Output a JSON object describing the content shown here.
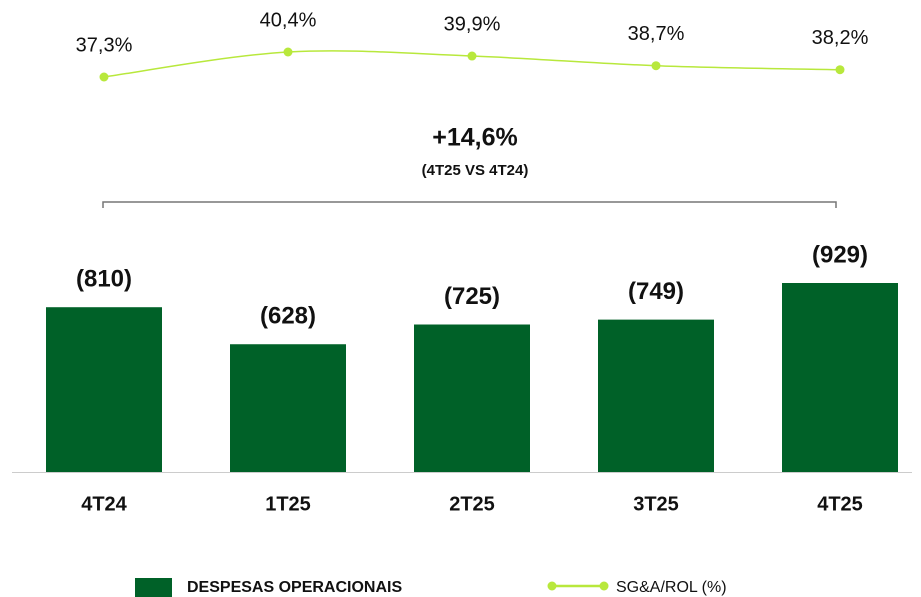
{
  "chart_data": {
    "type": "bar",
    "categories": [
      "4T24",
      "1T25",
      "2T25",
      "3T25",
      "4T25"
    ],
    "series": [
      {
        "name": "DESPESAS OPERACIONAIS",
        "color": "#006128",
        "values": [
          810,
          628,
          725,
          749,
          929
        ],
        "value_labels": [
          "(810)",
          "(628)",
          "(725)",
          "(749)",
          "(929)"
        ]
      },
      {
        "name": "SG&A/ROL (%)",
        "type": "line",
        "color": "#b8e83c",
        "values": [
          37.3,
          40.4,
          39.9,
          38.7,
          38.2
        ],
        "value_labels": [
          "37,3%",
          "40,4%",
          "39,9%",
          "38,7%",
          "38,2%"
        ]
      }
    ],
    "annotation": {
      "text": "+14,6%",
      "subtext": "(4T25 VS 4T24)"
    }
  }
}
